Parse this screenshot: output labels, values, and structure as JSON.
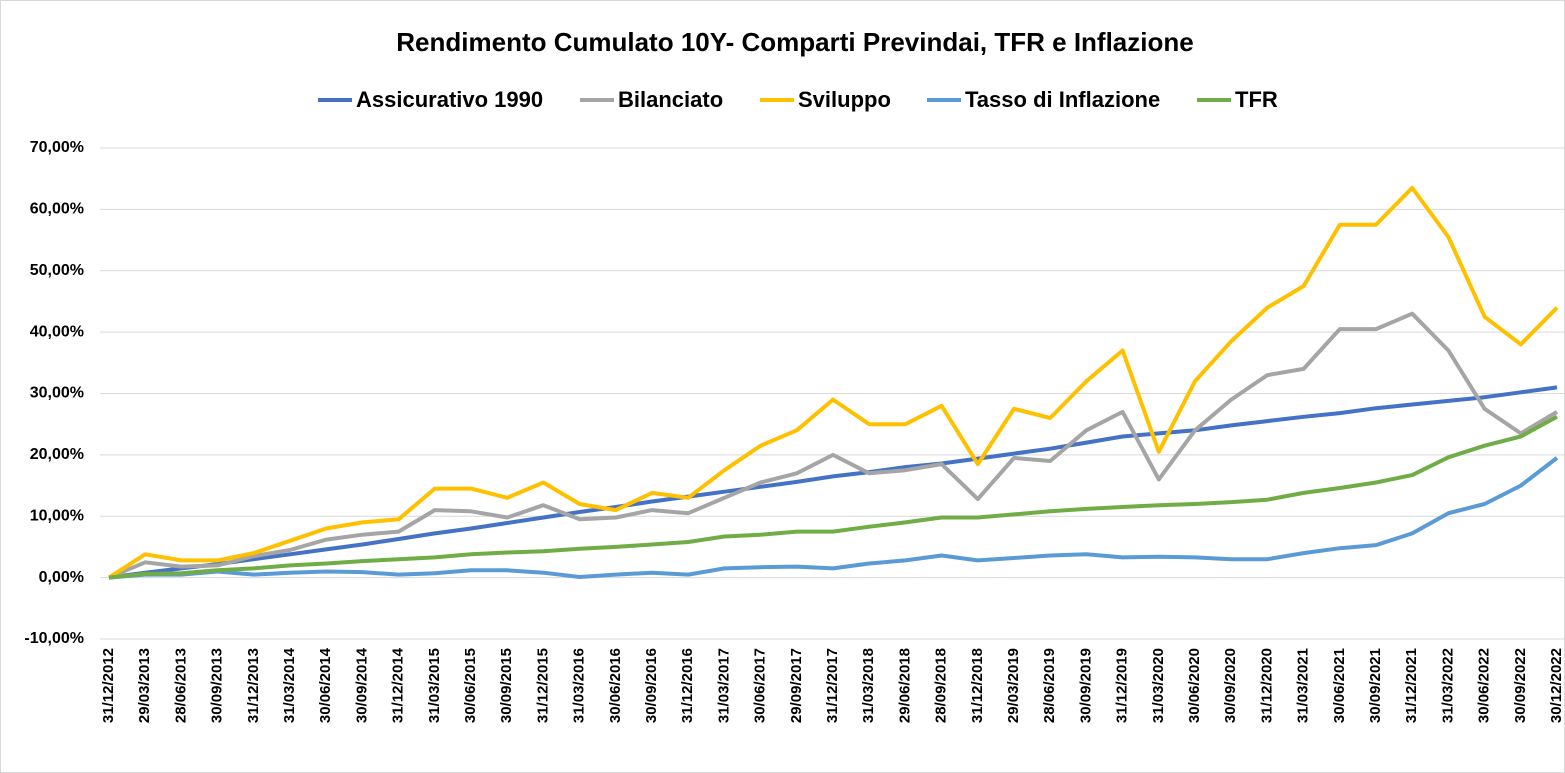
{
  "chart_data": {
    "type": "line",
    "title": "Rendimento Cumulato 10Y- Comparti Previndai, TFR e Inflazione",
    "categories": [
      "31/12/2012",
      "29/03/2013",
      "28/06/2013",
      "30/09/2013",
      "31/12/2013",
      "31/03/2014",
      "30/06/2014",
      "30/09/2014",
      "31/12/2014",
      "31/03/2015",
      "30/06/2015",
      "30/09/2015",
      "31/12/2015",
      "31/03/2016",
      "30/06/2016",
      "30/09/2016",
      "31/12/2016",
      "31/03/2017",
      "30/06/2017",
      "29/09/2017",
      "31/12/2017",
      "31/03/2018",
      "29/06/2018",
      "28/09/2018",
      "31/12/2018",
      "29/03/2019",
      "28/06/2019",
      "30/09/2019",
      "31/12/2019",
      "31/03/2020",
      "30/06/2020",
      "30/09/2020",
      "31/12/2020",
      "31/03/2021",
      "30/06/2021",
      "30/09/2021",
      "31/12/2021",
      "31/03/2022",
      "30/06/2022",
      "30/09/2022",
      "30/12/2022"
    ],
    "series": [
      {
        "name": "Assicurativo 1990",
        "color": "#4472c4",
        "values": [
          0,
          0.8,
          1.5,
          2.2,
          3.0,
          3.8,
          4.6,
          5.4,
          6.3,
          7.2,
          8.0,
          8.9,
          9.8,
          10.7,
          11.5,
          12.4,
          13.2,
          14.0,
          14.8,
          15.6,
          16.5,
          17.2,
          18.0,
          18.6,
          19.4,
          20.2,
          21.0,
          22.0,
          23.0,
          23.5,
          24.0,
          24.8,
          25.5,
          26.2,
          26.8,
          27.6,
          28.2,
          28.8,
          29.4,
          30.2,
          31.0
        ]
      },
      {
        "name": "Bilanciato",
        "color": "#a5a5a5",
        "values": [
          0,
          2.5,
          1.8,
          2.0,
          3.5,
          4.5,
          6.2,
          7.0,
          7.5,
          11,
          10.8,
          9.8,
          11.8,
          9.5,
          9.8,
          11,
          10.5,
          13,
          15.5,
          17,
          20,
          17,
          17.5,
          18.5,
          12.8,
          19.5,
          19,
          24,
          27,
          16,
          24,
          29,
          33,
          34,
          40.5,
          40.5,
          43,
          37,
          27.5,
          23.5,
          27
        ]
      },
      {
        "name": "Sviluppo",
        "color": "#ffc000",
        "values": [
          0,
          3.8,
          2.8,
          2.8,
          4.0,
          6.0,
          8.0,
          9.0,
          9.5,
          14.5,
          14.5,
          13,
          15.5,
          12,
          11,
          13.8,
          13,
          17.5,
          21.5,
          24,
          29,
          25,
          25,
          28,
          18.5,
          27.5,
          26,
          32,
          37,
          20.5,
          32,
          38.5,
          44,
          47.5,
          57.5,
          57.5,
          63.5,
          55.5,
          42.5,
          38,
          44
        ]
      },
      {
        "name": "Tasso di Inflazione",
        "color": "#5b9bd5",
        "values": [
          0,
          0.5,
          0.5,
          1.0,
          0.5,
          0.8,
          1.0,
          0.9,
          0.5,
          0.7,
          1.2,
          1.2,
          0.8,
          0.1,
          0.5,
          0.8,
          0.5,
          1.5,
          1.7,
          1.8,
          1.5,
          2.3,
          2.8,
          3.6,
          2.8,
          3.2,
          3.6,
          3.8,
          3.3,
          3.4,
          3.3,
          3.0,
          3.0,
          4.0,
          4.8,
          5.3,
          7.2,
          10.5,
          12.0,
          15,
          19.5
        ]
      },
      {
        "name": "TFR",
        "color": "#70ad47",
        "values": [
          0,
          0.6,
          0.7,
          1.2,
          1.5,
          2.0,
          2.3,
          2.7,
          3.0,
          3.3,
          3.8,
          4.1,
          4.3,
          4.7,
          5.0,
          5.4,
          5.8,
          6.7,
          7.0,
          7.5,
          7.5,
          8.3,
          9.0,
          9.8,
          9.8,
          10.3,
          10.8,
          11.2,
          11.5,
          11.8,
          12.0,
          12.3,
          12.7,
          13.8,
          14.6,
          15.5,
          16.7,
          19.6,
          21.5,
          23,
          26.2
        ]
      }
    ],
    "ylim": [
      -10,
      70
    ],
    "yticks": [
      {
        "value": -10,
        "label": "-10,00%"
      },
      {
        "value": 0,
        "label": "0,00%"
      },
      {
        "value": 10,
        "label": "10,00%"
      },
      {
        "value": 20,
        "label": "20,00%"
      },
      {
        "value": 30,
        "label": "30,00%"
      },
      {
        "value": 40,
        "label": "40,00%"
      },
      {
        "value": 50,
        "label": "50,00%"
      },
      {
        "value": 60,
        "label": "60,00%"
      },
      {
        "value": 70,
        "label": "70,00%"
      }
    ],
    "grid": true
  }
}
